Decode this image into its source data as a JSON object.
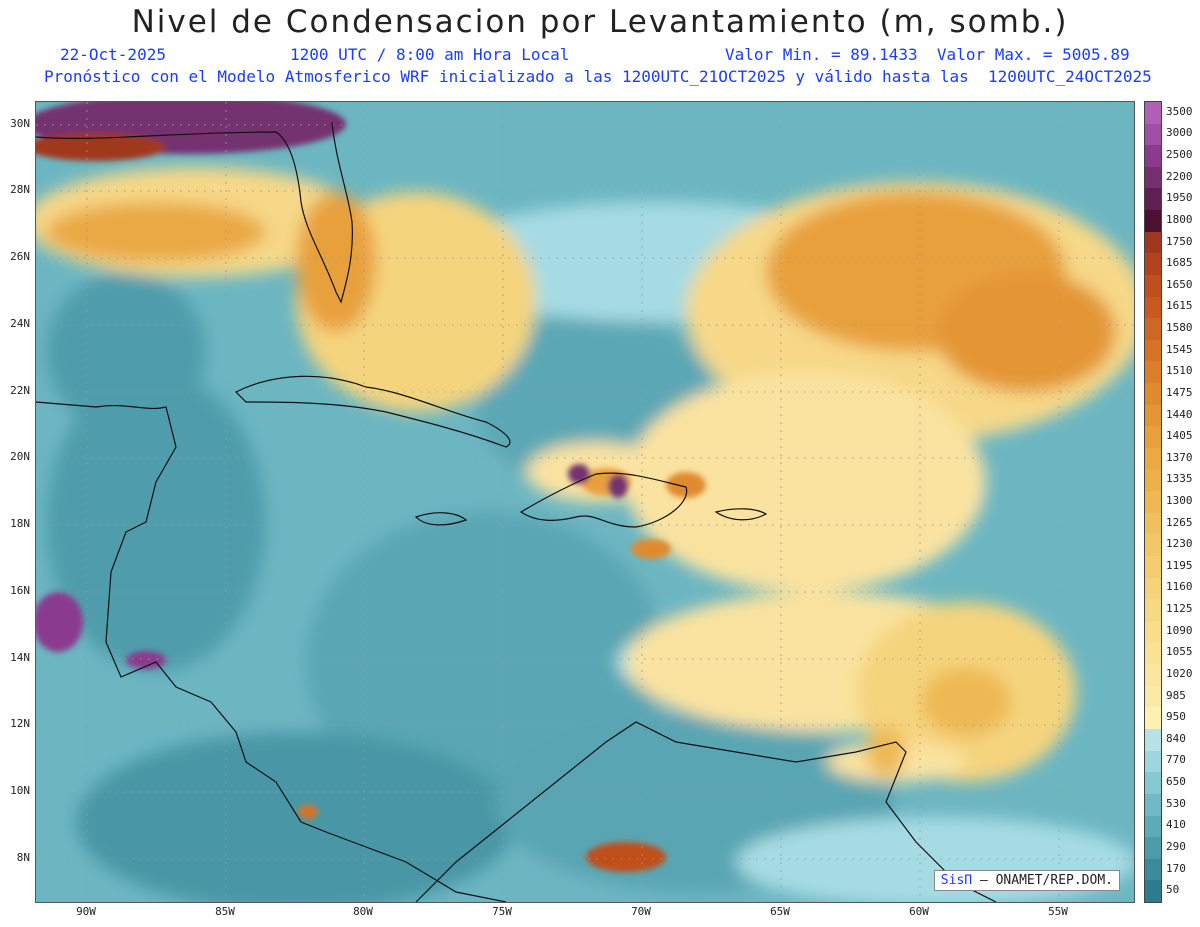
{
  "header": {
    "title": "Nivel de Condensacion por Levantamiento (m, somb.)",
    "date": "22-Oct-2025",
    "time": "1200 UTC / 8:00 am Hora Local",
    "range": "Valor Min. = 89.1433  Valor Max. = 5005.89",
    "model": "Pronóstico con el Modelo Atmosferico WRF inicializado a las 1200UTC_21OCT2025 y válido hasta las  1200UTC_24OCT2025"
  },
  "axes": {
    "lat_labels": [
      "30N",
      "28N",
      "26N",
      "24N",
      "22N",
      "20N",
      "18N",
      "16N",
      "14N",
      "12N",
      "10N",
      "8N"
    ],
    "lon_labels": [
      "90W",
      "85W",
      "80W",
      "75W",
      "70W",
      "65W",
      "60W",
      "55W"
    ]
  },
  "legend": {
    "levels": [
      "3500",
      "3000",
      "2500",
      "2200",
      "1950",
      "1800",
      "1750",
      "1685",
      "1650",
      "1615",
      "1580",
      "1545",
      "1510",
      "1475",
      "1440",
      "1405",
      "1370",
      "1335",
      "1300",
      "1265",
      "1230",
      "1195",
      "1160",
      "1125",
      "1090",
      "1055",
      "1020",
      "985",
      "950",
      "840",
      "770",
      "650",
      "530",
      "410",
      "290",
      "170",
      "50"
    ],
    "colors": [
      "#b15fb8",
      "#a04ea6",
      "#8b3a8f",
      "#74306f",
      "#5e1f52",
      "#4c1131",
      "#a0381f",
      "#b5421f",
      "#c04f1f",
      "#c85a20",
      "#d06623",
      "#d77326",
      "#dc7f2a",
      "#e08a2f",
      "#e49636",
      "#e8a03d",
      "#eaa944",
      "#ecb14c",
      "#eeb955",
      "#f0c05e",
      "#f2c767",
      "#f4cd70",
      "#f6d37a",
      "#f7d883",
      "#f8dd8c",
      "#f9e295",
      "#fae69e",
      "#fbeaa7",
      "#fdf0b0",
      "#b8e2e8",
      "#9dd6df",
      "#86c8d2",
      "#71b9c5",
      "#5eaab7",
      "#4e9aa9",
      "#3f8a9a",
      "#2f7a8b"
    ]
  },
  "credit": {
    "brand": "SisΠ",
    "text": "– ONAMET/REP.DOM."
  }
}
